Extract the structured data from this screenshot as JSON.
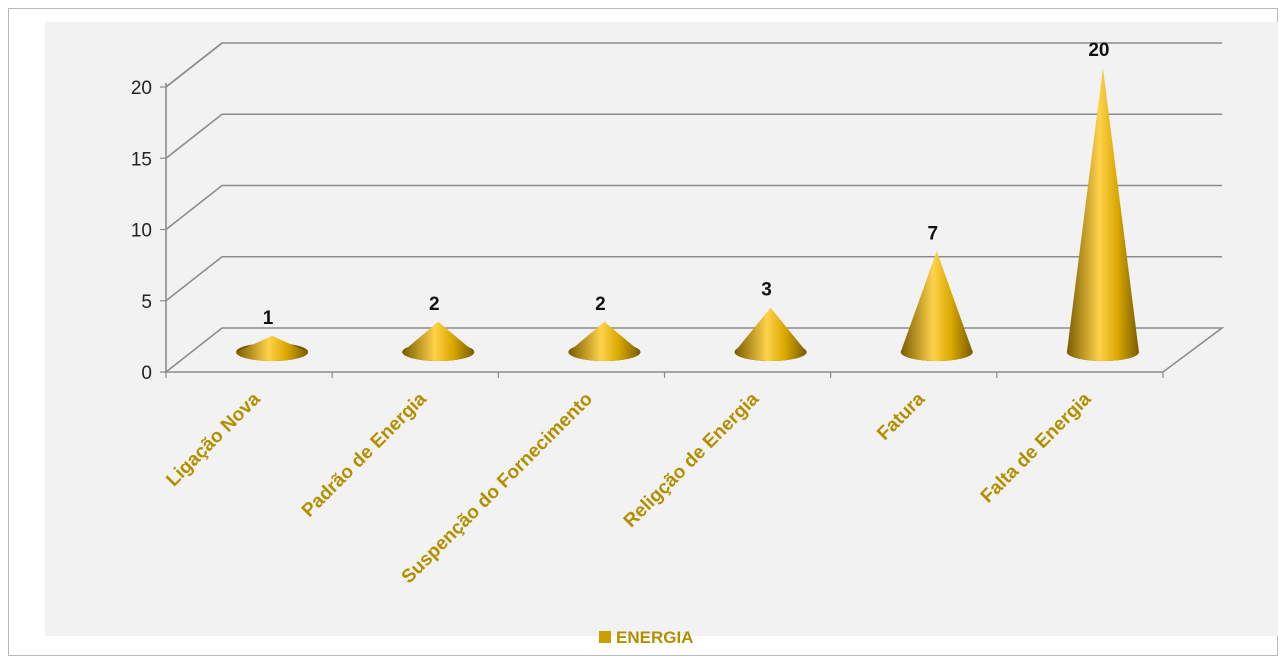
{
  "chart_data": {
    "type": "bar",
    "style": "3d-cone",
    "categories": [
      "Ligação Nova",
      "Padrão de Energia",
      "Suspenção do Fornecimento",
      "Religção de Energia",
      "Fatura",
      "Falta de Energia"
    ],
    "series": [
      {
        "name": "ENERGIA",
        "values": [
          1,
          2,
          2,
          3,
          7,
          20
        ],
        "color": "#c9a000"
      }
    ],
    "yticks": [
      0,
      5,
      10,
      15,
      20
    ],
    "ylim": [
      0,
      20
    ],
    "grid": true,
    "legend": "bottom",
    "data_labels": true,
    "colors": {
      "gold": "#c9a000",
      "label_text": "#b38f00",
      "axis": "#8c8c8c",
      "wall": "#f2f2f2"
    }
  }
}
